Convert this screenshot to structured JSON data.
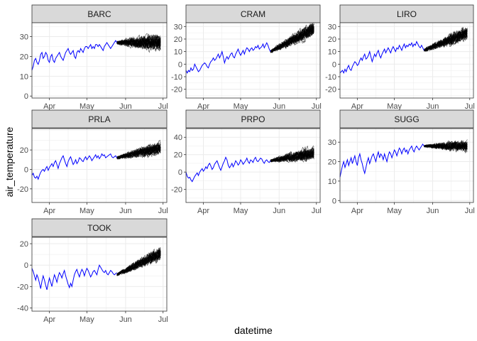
{
  "chart_data": {
    "type": "line",
    "title": "",
    "xlabel": "datetime",
    "ylabel": "air_temperature",
    "x_ticks": [
      "Apr",
      "May",
      "Jun",
      "Jul"
    ],
    "x_tick_days": [
      91,
      121,
      152,
      182
    ],
    "xlim_days": [
      77,
      185
    ],
    "forecast_start_day": 145,
    "forecast_end_day": 180,
    "colors": {
      "observed": "#0000ff",
      "forecast": "#000000",
      "strip_bg": "#d9d9d9",
      "grid": "#ebebeb",
      "border": "#333333"
    },
    "grid": true,
    "facets": [
      {
        "name": "BARC",
        "ylim": [
          -1,
          37
        ],
        "y_ticks": [
          0,
          10,
          20,
          30
        ],
        "observed": {
          "x": [
            77,
            78,
            79,
            80,
            81,
            82,
            83,
            84,
            85,
            86,
            87,
            88,
            89,
            90,
            91,
            92,
            93,
            94,
            95,
            96,
            97,
            98,
            99,
            100,
            101,
            102,
            103,
            104,
            105,
            106,
            107,
            108,
            109,
            110,
            111,
            112,
            113,
            114,
            115,
            116,
            117,
            118,
            119,
            120,
            121,
            122,
            123,
            124,
            125,
            126,
            127,
            128,
            129,
            130,
            131,
            132,
            133,
            134,
            135,
            136,
            137,
            138,
            139,
            140,
            141,
            142,
            143,
            144,
            145
          ],
          "y": [
            13,
            15,
            18,
            19,
            17,
            16,
            18,
            21,
            22,
            19,
            20,
            22,
            21,
            18,
            17,
            20,
            21,
            18,
            17,
            19,
            20,
            21,
            22,
            20,
            19,
            18,
            20,
            22,
            23,
            24,
            22,
            21,
            22,
            23,
            20,
            19,
            22,
            23,
            22,
            24,
            23,
            22,
            24,
            25,
            25,
            24,
            25,
            26,
            24,
            25,
            24,
            26,
            26,
            25,
            26,
            25,
            24,
            23,
            25,
            26,
            27,
            26,
            25,
            24,
            25,
            26,
            27,
            28,
            27
          ]
        },
        "forecast": {
          "start": 27,
          "end": 27,
          "spread": 9
        }
      },
      {
        "name": "CRAM",
        "ylim": [
          -27,
          33
        ],
        "y_ticks": [
          -20,
          -10,
          0,
          10,
          20,
          30
        ],
        "observed": {
          "x": [
            77,
            78,
            79,
            80,
            81,
            82,
            83,
            84,
            85,
            86,
            87,
            88,
            89,
            90,
            91,
            92,
            93,
            94,
            95,
            96,
            97,
            98,
            99,
            100,
            101,
            102,
            103,
            104,
            105,
            106,
            107,
            108,
            109,
            110,
            111,
            112,
            113,
            114,
            115,
            116,
            117,
            118,
            119,
            120,
            121,
            122,
            123,
            124,
            125,
            126,
            127,
            128,
            129,
            130,
            131,
            132,
            133,
            134,
            135,
            136,
            137,
            138,
            139,
            140,
            141,
            142,
            143,
            144,
            145
          ],
          "y": [
            -5,
            -7,
            -5,
            -6,
            -3,
            -5,
            -4,
            0,
            -2,
            -4,
            -6,
            -5,
            -3,
            -1,
            0,
            1,
            0,
            -2,
            -3,
            0,
            2,
            3,
            5,
            3,
            4,
            6,
            8,
            5,
            7,
            10,
            6,
            1,
            4,
            6,
            4,
            6,
            8,
            9,
            6,
            5,
            8,
            10,
            12,
            9,
            7,
            9,
            11,
            8,
            11,
            13,
            12,
            10,
            12,
            13,
            11,
            12,
            14,
            13,
            15,
            12,
            13,
            14,
            16,
            13,
            15,
            17,
            15,
            12,
            10
          ]
        },
        "forecast": {
          "start": 10,
          "end": 28,
          "spread": 12
        }
      },
      {
        "name": "LIRO",
        "ylim": [
          -27,
          33
        ],
        "y_ticks": [
          -20,
          -10,
          0,
          10,
          20,
          30
        ],
        "observed": {
          "x": [
            77,
            78,
            79,
            80,
            81,
            82,
            83,
            84,
            85,
            86,
            87,
            88,
            89,
            90,
            91,
            92,
            93,
            94,
            95,
            96,
            97,
            98,
            99,
            100,
            101,
            102,
            103,
            104,
            105,
            106,
            107,
            108,
            109,
            110,
            111,
            112,
            113,
            114,
            115,
            116,
            117,
            118,
            119,
            120,
            121,
            122,
            123,
            124,
            125,
            126,
            127,
            128,
            129,
            130,
            131,
            132,
            133,
            134,
            135,
            136,
            137,
            138,
            139,
            140,
            141,
            142,
            143,
            144,
            145
          ],
          "y": [
            -7,
            -6,
            -5,
            -7,
            -4,
            -6,
            -3,
            -1,
            -4,
            -5,
            -2,
            0,
            2,
            1,
            -1,
            0,
            3,
            5,
            3,
            6,
            8,
            4,
            5,
            7,
            10,
            6,
            2,
            5,
            8,
            6,
            9,
            11,
            7,
            5,
            8,
            10,
            12,
            9,
            11,
            13,
            11,
            9,
            12,
            14,
            12,
            10,
            13,
            12,
            15,
            13,
            11,
            14,
            16,
            13,
            15,
            14,
            16,
            15,
            17,
            14,
            16,
            15,
            18,
            16,
            14,
            13,
            15,
            13,
            11
          ]
        },
        "forecast": {
          "start": 11,
          "end": 25,
          "spread": 12
        }
      },
      {
        "name": "PRLA",
        "ylim": [
          -34,
          42
        ],
        "y_ticks": [
          -20,
          0,
          20
        ],
        "observed": {
          "x": [
            77,
            78,
            79,
            80,
            81,
            82,
            83,
            84,
            85,
            86,
            87,
            88,
            89,
            90,
            91,
            92,
            93,
            94,
            95,
            96,
            97,
            98,
            99,
            100,
            101,
            102,
            103,
            104,
            105,
            106,
            107,
            108,
            109,
            110,
            111,
            112,
            113,
            114,
            115,
            116,
            117,
            118,
            119,
            120,
            121,
            122,
            123,
            124,
            125,
            126,
            127,
            128,
            129,
            130,
            131,
            132,
            133,
            134,
            135,
            136,
            137,
            138,
            139,
            140,
            141,
            142,
            143,
            144,
            145
          ],
          "y": [
            -6,
            -4,
            -8,
            -9,
            -7,
            -10,
            -6,
            -3,
            -1,
            0,
            -2,
            1,
            3,
            -1,
            2,
            4,
            6,
            3,
            7,
            9,
            5,
            1,
            6,
            9,
            12,
            14,
            10,
            6,
            3,
            8,
            11,
            13,
            9,
            5,
            7,
            10,
            6,
            8,
            12,
            11,
            9,
            8,
            11,
            13,
            10,
            12,
            14,
            12,
            9,
            11,
            13,
            15,
            12,
            14,
            11,
            13,
            16,
            14,
            15,
            12,
            13,
            14,
            15,
            16,
            13,
            12,
            13,
            14,
            12
          ]
        },
        "forecast": {
          "start": 12,
          "end": 22,
          "spread": 14
        }
      },
      {
        "name": "PRPO",
        "ylim": [
          -35,
          50
        ],
        "y_ticks": [
          -20,
          0,
          20,
          40
        ],
        "observed": {
          "x": [
            77,
            78,
            79,
            80,
            81,
            82,
            83,
            84,
            85,
            86,
            87,
            88,
            89,
            90,
            91,
            92,
            93,
            94,
            95,
            96,
            97,
            98,
            99,
            100,
            101,
            102,
            103,
            104,
            105,
            106,
            107,
            108,
            109,
            110,
            111,
            112,
            113,
            114,
            115,
            116,
            117,
            118,
            119,
            120,
            121,
            122,
            123,
            124,
            125,
            126,
            127,
            128,
            129,
            130,
            131,
            132,
            133,
            134,
            135,
            136,
            137,
            138,
            139,
            140,
            141,
            142,
            143,
            144,
            145
          ],
          "y": [
            0,
            -5,
            -7,
            -6,
            -9,
            -11,
            -8,
            -5,
            -3,
            -1,
            -4,
            0,
            2,
            4,
            1,
            3,
            6,
            4,
            8,
            10,
            7,
            3,
            5,
            9,
            11,
            13,
            9,
            5,
            2,
            6,
            10,
            13,
            17,
            14,
            8,
            5,
            7,
            10,
            6,
            9,
            13,
            11,
            8,
            10,
            14,
            12,
            9,
            11,
            13,
            16,
            12,
            10,
            14,
            13,
            11,
            15,
            17,
            13,
            12,
            14,
            16,
            15,
            12,
            10,
            13,
            14,
            12,
            11,
            13
          ]
        },
        "forecast": {
          "start": 13,
          "end": 22,
          "spread": 16
        }
      },
      {
        "name": "SUGG",
        "ylim": [
          -1,
          37
        ],
        "y_ticks": [
          0,
          10,
          20,
          30
        ],
        "observed": {
          "x": [
            77,
            78,
            79,
            80,
            81,
            82,
            83,
            84,
            85,
            86,
            87,
            88,
            89,
            90,
            91,
            92,
            93,
            94,
            95,
            96,
            97,
            98,
            99,
            100,
            101,
            102,
            103,
            104,
            105,
            106,
            107,
            108,
            109,
            110,
            111,
            112,
            113,
            114,
            115,
            116,
            117,
            118,
            119,
            120,
            121,
            122,
            123,
            124,
            125,
            126,
            127,
            128,
            129,
            130,
            131,
            132,
            133,
            134,
            135,
            136,
            137,
            138,
            139,
            140,
            141,
            142,
            143,
            144,
            145
          ],
          "y": [
            12,
            15,
            18,
            20,
            17,
            19,
            21,
            18,
            20,
            22,
            19,
            21,
            23,
            20,
            18,
            22,
            24,
            21,
            19,
            16,
            14,
            17,
            20,
            22,
            19,
            21,
            23,
            24,
            22,
            20,
            23,
            25,
            22,
            24,
            23,
            21,
            24,
            22,
            20,
            23,
            25,
            24,
            22,
            24,
            26,
            25,
            23,
            25,
            27,
            26,
            24,
            26,
            27,
            25,
            26,
            24,
            26,
            27,
            28,
            26,
            25,
            27,
            28,
            27,
            26,
            27,
            28,
            29,
            28
          ]
        },
        "forecast": {
          "start": 28,
          "end": 28,
          "spread": 6
        }
      },
      {
        "name": "TOOK",
        "ylim": [
          -43,
          26
        ],
        "y_ticks": [
          -40,
          -20,
          0,
          20
        ],
        "observed": {
          "x": [
            77,
            78,
            79,
            80,
            81,
            82,
            83,
            84,
            85,
            86,
            87,
            88,
            89,
            90,
            91,
            92,
            93,
            94,
            95,
            96,
            97,
            98,
            99,
            100,
            101,
            102,
            103,
            104,
            105,
            106,
            107,
            108,
            109,
            110,
            111,
            112,
            113,
            114,
            115,
            116,
            117,
            118,
            119,
            120,
            121,
            122,
            123,
            124,
            125,
            126,
            127,
            128,
            129,
            130,
            131,
            132,
            133,
            134,
            135,
            136,
            137,
            138,
            139,
            140,
            141,
            142,
            143,
            144,
            145
          ],
          "y": [
            -3,
            -6,
            -10,
            -14,
            -9,
            -12,
            -17,
            -22,
            -15,
            -10,
            -14,
            -19,
            -23,
            -17,
            -12,
            -16,
            -20,
            -14,
            -9,
            -12,
            -16,
            -11,
            -7,
            -9,
            -12,
            -8,
            -5,
            -10,
            -14,
            -18,
            -21,
            -17,
            -20,
            -14,
            -9,
            -6,
            -4,
            -8,
            -11,
            -7,
            -4,
            -6,
            -10,
            -6,
            -3,
            -5,
            -8,
            -11,
            -9,
            -6,
            -5,
            -7,
            -9,
            -4,
            0,
            -2,
            -4,
            -6,
            -7,
            -5,
            -8,
            -9,
            -7,
            -5,
            -6,
            -8,
            -9,
            -8,
            -7
          ]
        },
        "forecast": {
          "start": -9,
          "end": 11,
          "spread": 13
        }
      }
    ]
  }
}
